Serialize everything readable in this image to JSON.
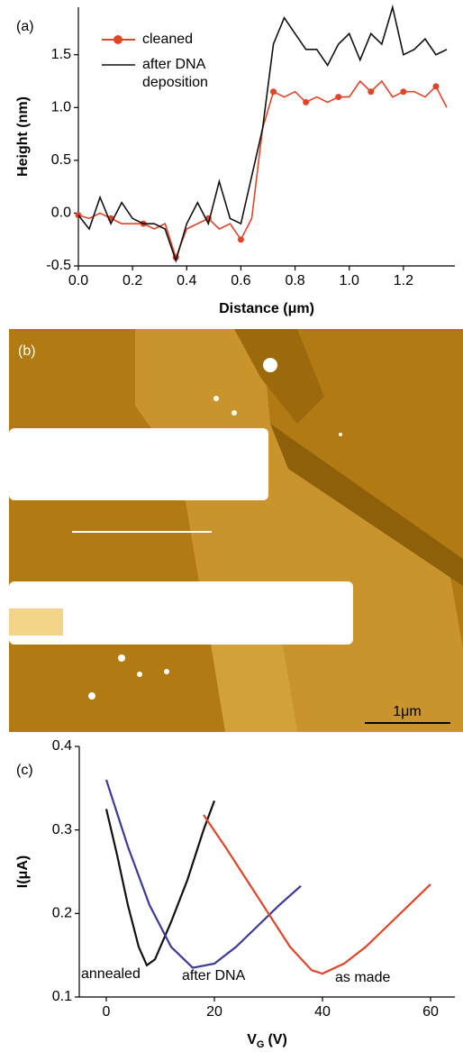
{
  "chart_data": [
    {
      "type": "line",
      "panel_label": "(a)",
      "xlabel": "Distance (μm)",
      "ylabel": "Height (nm)",
      "xlim": [
        0,
        1.39
      ],
      "ylim": [
        -0.5,
        1.95
      ],
      "xticks": [
        {
          "value": 0,
          "label": "0.0"
        },
        0.2,
        0.4,
        0.6,
        0.8,
        {
          "value": 1,
          "label": "1.0"
        },
        1.2
      ],
      "yticks": [
        -0.5,
        {
          "value": 0,
          "label": "0.0"
        },
        0.5,
        {
          "value": 1,
          "label": "1.0"
        },
        1.5
      ],
      "x": [
        0,
        0.04,
        0.08,
        0.12,
        0.16,
        0.2,
        0.24,
        0.28,
        0.32,
        0.36,
        0.4,
        0.44,
        0.48,
        0.52,
        0.56,
        0.6,
        0.64,
        0.68,
        0.72,
        0.76,
        0.8,
        0.84,
        0.88,
        0.92,
        0.96,
        1.0,
        1.04,
        1.08,
        1.12,
        1.16,
        1.2,
        1.24,
        1.28,
        1.32,
        1.36
      ],
      "series": [
        {
          "name": "cleaned",
          "color": "#e0452a",
          "markers": true,
          "values": [
            -0.02,
            -0.05,
            0.0,
            -0.05,
            -0.1,
            -0.1,
            -0.1,
            -0.15,
            -0.1,
            -0.42,
            -0.15,
            -0.1,
            -0.05,
            -0.15,
            -0.1,
            -0.25,
            -0.05,
            0.8,
            1.15,
            1.1,
            1.15,
            1.05,
            1.1,
            1.05,
            1.1,
            1.1,
            1.25,
            1.15,
            1.25,
            1.1,
            1.15,
            1.15,
            1.1,
            1.2,
            1.0
          ]
        },
        {
          "name": "after DNA deposition",
          "color": "#111111",
          "values": [
            -0.02,
            -0.15,
            0.15,
            -0.1,
            0.1,
            -0.05,
            -0.1,
            -0.1,
            -0.15,
            -0.45,
            -0.1,
            0.1,
            -0.1,
            0.3,
            -0.05,
            -0.1,
            0.35,
            0.8,
            1.6,
            1.85,
            1.7,
            1.55,
            1.55,
            1.4,
            1.6,
            1.7,
            1.45,
            1.7,
            1.6,
            1.95,
            1.5,
            1.55,
            1.65,
            1.5,
            1.55
          ]
        }
      ]
    },
    {
      "type": "line",
      "panel_label": "(c)",
      "xlabel": {
        "main": "V",
        "sub": "G",
        "unit": "(V)"
      },
      "ylabel": "I(μA)",
      "xlim": [
        -5,
        64.5
      ],
      "ylim": [
        0.1,
        0.4
      ],
      "xticks": [
        0,
        20,
        40,
        60
      ],
      "yticks": [
        0.1,
        0.2,
        0.3,
        0.4
      ],
      "series": [
        {
          "name": "annealed",
          "color": "#111111",
          "x": [
            0,
            2,
            4,
            6,
            7.5,
            9,
            12,
            15,
            18,
            20
          ],
          "values": [
            0.325,
            0.27,
            0.21,
            0.16,
            0.138,
            0.145,
            0.19,
            0.24,
            0.3,
            0.335
          ]
        },
        {
          "name": "after DNA",
          "color": "#3c3a95",
          "x": [
            0,
            4,
            8,
            12,
            16,
            20,
            24,
            28,
            32,
            36
          ],
          "values": [
            0.36,
            0.28,
            0.21,
            0.16,
            0.135,
            0.14,
            0.16,
            0.185,
            0.21,
            0.233
          ]
        },
        {
          "name": "as made",
          "color": "#e0452a",
          "x": [
            18,
            22,
            26,
            30,
            34,
            38,
            40,
            44,
            48,
            52,
            56,
            60
          ],
          "values": [
            0.318,
            0.28,
            0.24,
            0.2,
            0.16,
            0.132,
            0.128,
            0.14,
            0.16,
            0.185,
            0.21,
            0.235
          ]
        }
      ]
    }
  ],
  "image_panel": {
    "label": "(b)",
    "scale_bar": "1μm"
  }
}
